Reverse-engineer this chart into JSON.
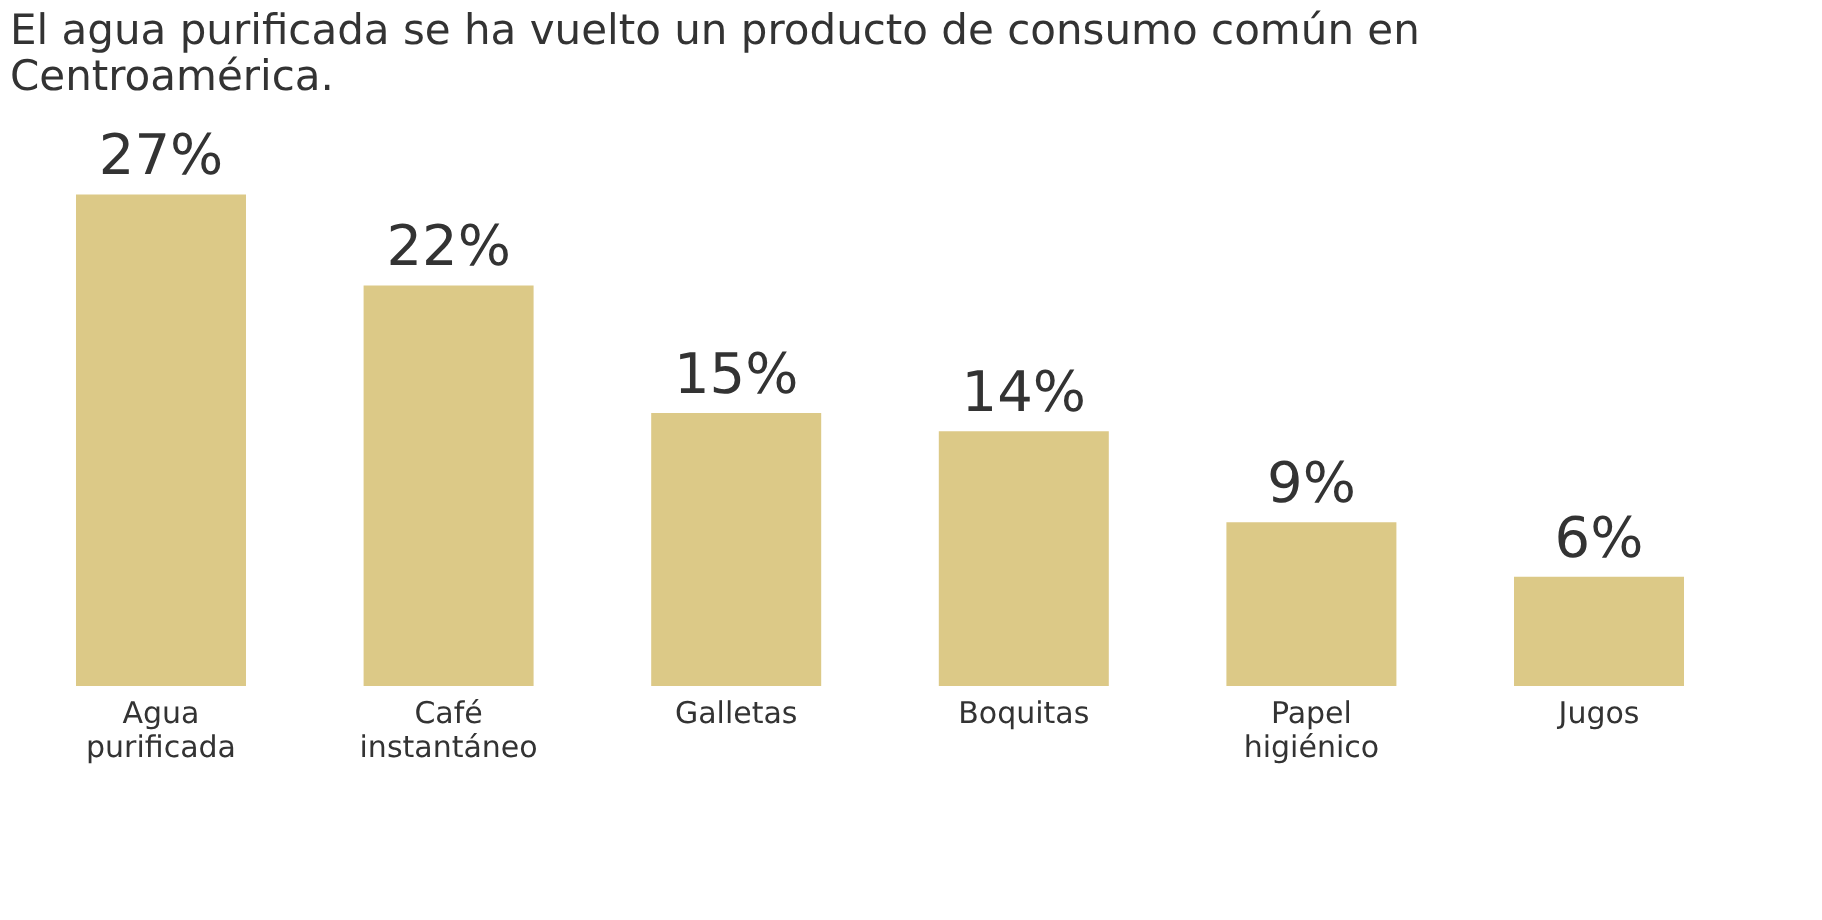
{
  "chart_data": {
    "type": "bar",
    "title": "El agua purificada se ha vuelto un producto de consumo común en Centroamérica.",
    "categories": [
      "Agua purificada",
      "Café instantáneo",
      "Galletas",
      "Boquitas",
      "Papel higiénico",
      "Jugos"
    ],
    "values": [
      27,
      22,
      15,
      14,
      9,
      6
    ],
    "value_labels": [
      "27%",
      "22%",
      "15%",
      "14%",
      "9%",
      "6%"
    ],
    "color": "#dcc987",
    "grid": false
  }
}
